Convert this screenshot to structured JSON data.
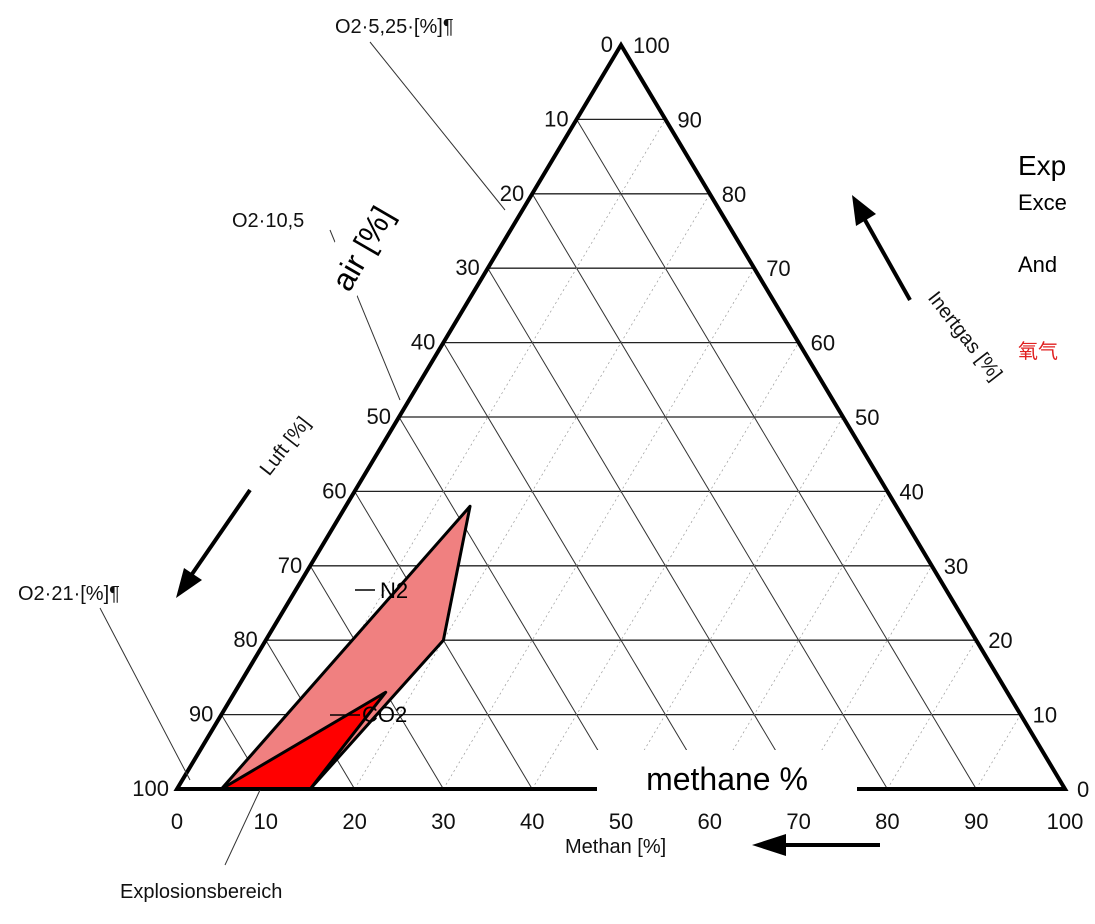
{
  "chart_data": {
    "type": "ternary",
    "axes": {
      "bottom": {
        "label": "Methan [%]",
        "ticks": [
          "0",
          "10",
          "20",
          "30",
          "40",
          "50",
          "60",
          "70",
          "80",
          "90",
          "100"
        ]
      },
      "left": {
        "label": "Luft [%]",
        "ticks": [
          "100",
          "90",
          "80",
          "70",
          "60",
          "50",
          "40",
          "30",
          "20",
          "10",
          "0"
        ]
      },
      "right": {
        "label": "Inertgas [%]",
        "ticks": [
          "0",
          "10",
          "20",
          "30",
          "40",
          "50",
          "60",
          "70",
          "80",
          "90",
          "100"
        ]
      }
    },
    "o2_labels": [
      "O2·5,25·[%]¶",
      "O2·10,5",
      "O2·21·[%]¶"
    ],
    "annotations": {
      "air": "air [%]",
      "methane": "methane %",
      "n2": "N2",
      "co2": "CO2",
      "explosion_region": "Explosionsbereich"
    },
    "regions": [
      {
        "name": "N2",
        "color": "#f08080",
        "points": [
          [
            5,
            95,
            0
          ],
          [
            15,
            85,
            0
          ],
          [
            15,
            85,
            0
          ],
          [
            20,
            60,
            20
          ],
          [
            14,
            48,
            38
          ],
          [
            5,
            95,
            0
          ]
        ]
      },
      {
        "name": "CO2",
        "color": "#ff0000",
        "points": [
          [
            5,
            95,
            0
          ],
          [
            15,
            85,
            0
          ],
          [
            17,
            70,
            13
          ],
          [
            5,
            95,
            0
          ]
        ]
      }
    ],
    "right_panel": {
      "line1": "Exp",
      "line2": "Exce",
      "line3": "And",
      "line4": "氧气"
    }
  }
}
